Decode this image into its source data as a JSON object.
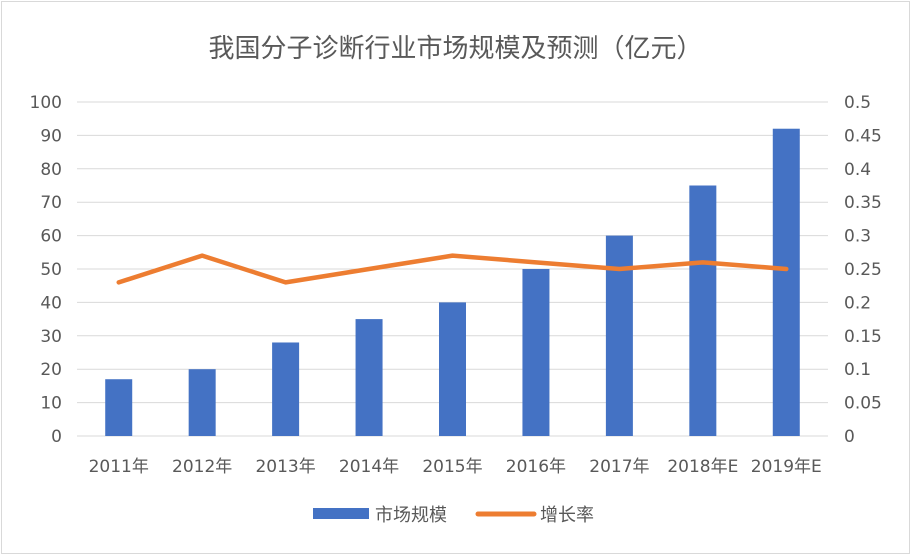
{
  "chart_data": {
    "type": "bar",
    "title": "我国分子诊断行业市场规模及预测（亿元）",
    "categories": [
      "2011年",
      "2012年",
      "2013年",
      "2014年",
      "2015年",
      "2016年",
      "2017年",
      "2018年E",
      "2019年E"
    ],
    "series": [
      {
        "name": "市场规模",
        "type": "bar",
        "axis": "left",
        "color": "#4472c4",
        "values": [
          17,
          20,
          28,
          35,
          40,
          50,
          60,
          75,
          92
        ]
      },
      {
        "name": "增长率",
        "type": "line",
        "axis": "right",
        "color": "#ed7d31",
        "values": [
          0.23,
          0.27,
          0.23,
          0.25,
          0.27,
          0.26,
          0.25,
          0.26,
          0.25
        ]
      }
    ],
    "ylim_left": [
      0,
      100
    ],
    "yticks_left": [
      "0",
      "10",
      "20",
      "30",
      "40",
      "50",
      "60",
      "70",
      "80",
      "90",
      "100"
    ],
    "ylim_right": [
      0,
      0.5
    ],
    "yticks_right": [
      "0",
      "0.05",
      "0.1",
      "0.15",
      "0.2",
      "0.25",
      "0.3",
      "0.35",
      "0.4",
      "0.45",
      "0.5"
    ],
    "grid": true,
    "legend": "bottom"
  }
}
